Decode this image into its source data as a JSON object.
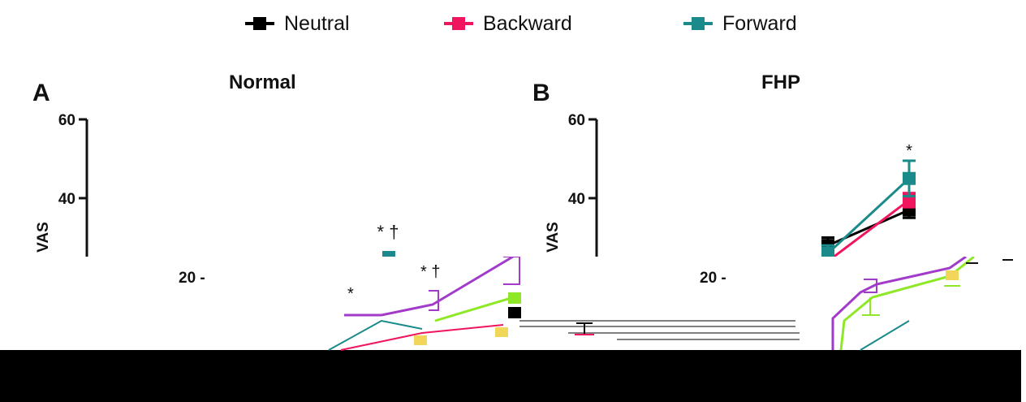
{
  "legend": {
    "items": [
      {
        "label": "Neutral",
        "color": "#000000"
      },
      {
        "label": "Backward",
        "color": "#f0155f"
      },
      {
        "label": "Forward",
        "color": "#1b8a8a"
      }
    ]
  },
  "chart_data": [
    {
      "type": "line",
      "panel": "A",
      "title": "Normal",
      "ylabel": "VAS",
      "yticks": [
        20,
        40,
        60
      ],
      "ylim": [
        10,
        62
      ],
      "annotations": [
        "*",
        "* †",
        "* †"
      ]
    },
    {
      "type": "line",
      "panel": "B",
      "title": "FHP",
      "ylabel": "VAS",
      "yticks": [
        20,
        40,
        60
      ],
      "ylim": [
        10,
        62
      ],
      "series": [
        {
          "name": "Neutral",
          "values": [
            28,
            37
          ]
        },
        {
          "name": "Backward",
          "values": [
            24,
            39.5
          ]
        },
        {
          "name": "Forward",
          "values": [
            26,
            45
          ]
        }
      ],
      "errors": [
        {
          "name": "Neutral",
          "values": [
            2,
            2
          ]
        },
        {
          "name": "Backward",
          "values": [
            2,
            1.8
          ]
        },
        {
          "name": "Forward",
          "values": [
            2,
            4.5
          ]
        }
      ],
      "annotations": [
        "*"
      ]
    }
  ]
}
